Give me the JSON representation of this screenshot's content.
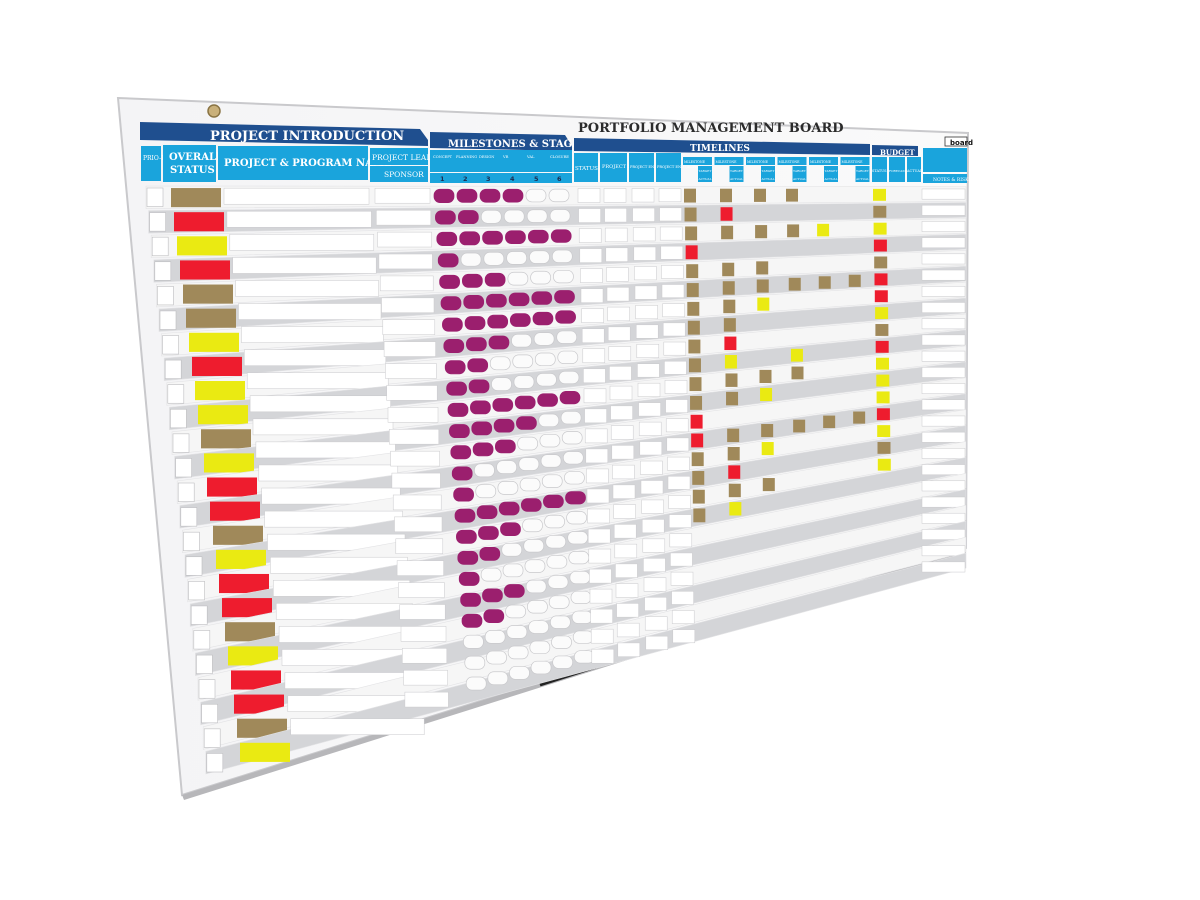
{
  "board": {
    "title": "PORTFOLIO MANAGEMENT BOARD",
    "logo_text": "board",
    "sections": {
      "project_introduction": "PROJECT INTRODUCTION",
      "milestones_stages": "MILESTONES & STAGES",
      "timelines": "TIMELINES",
      "budget": "BUDGET"
    },
    "columns": {
      "priority": "PRIO-RITY",
      "overall_status_1": "OVERALL",
      "overall_status_2": "STATUS",
      "project_name": "PROJECT & PROGRAM NAME",
      "project_lead": "PROJECT LEAD",
      "sponsor": "SPONSOR",
      "stage_labels": [
        "CONCEPT",
        "PLANNING",
        "DESIGN",
        "VR",
        "VAL",
        "CLOSURE"
      ],
      "stage_numbers": [
        "1",
        "2",
        "3",
        "4",
        "5",
        "6"
      ],
      "timeline_status": "STATUS",
      "project_start": "PROJECT START",
      "project_end_target": "PROJECT END (TARGET)",
      "project_end_actual": "PROJECT END (ACTUAL)",
      "milestone": "MILESTONE",
      "target": "TARGET",
      "actual": "ACTUAL",
      "budget_status": "STATUS",
      "forecast": "FORECAST",
      "budget_actual": "ACTUAL",
      "notes_risks": "NOTES & RISKS"
    },
    "colors": {
      "header_blue": "#1aa4dc",
      "banner_navy": "#1f4f8f",
      "status_brown": "#a0895a",
      "status_red": "#ee1c2e",
      "status_yellow": "#eaea12",
      "milestone_purple": "#9b1f6e",
      "row_gray": "#d4d5d8",
      "row_white": "#f6f6f6"
    },
    "rows": [
      {
        "status": "brown",
        "milestones": 4,
        "timeline": [
          "brown",
          null,
          "brown",
          "brown",
          "brown",
          null,
          null,
          null
        ],
        "budget": "yellow"
      },
      {
        "status": "red",
        "milestones": 2,
        "timeline": [
          "brown",
          null,
          "red",
          null,
          null,
          null,
          null,
          null
        ],
        "budget": "brown"
      },
      {
        "status": "yellow",
        "milestones": 6,
        "timeline": [
          "brown",
          null,
          "brown",
          "brown",
          "brown",
          "yellow",
          null,
          null
        ],
        "budget": "yellow"
      },
      {
        "status": "red",
        "milestones": 1,
        "timeline": [
          "red",
          null,
          null,
          null,
          null,
          null,
          null,
          null
        ],
        "budget": "red"
      },
      {
        "status": "brown",
        "milestones": 3,
        "timeline": [
          "brown",
          null,
          "brown",
          "brown",
          null,
          null,
          null,
          null
        ],
        "budget": "brown"
      },
      {
        "status": "brown",
        "milestones": 6,
        "timeline": [
          "brown",
          null,
          "brown",
          "brown",
          "brown",
          "brown",
          "brown",
          null
        ],
        "budget": "red"
      },
      {
        "status": "yellow",
        "milestones": 6,
        "timeline": [
          "brown",
          null,
          "brown",
          "yellow",
          null,
          null,
          null,
          null
        ],
        "budget": "red"
      },
      {
        "status": "red",
        "milestones": 3,
        "timeline": [
          "brown",
          null,
          "brown",
          null,
          null,
          null,
          null,
          null
        ],
        "budget": "yellow"
      },
      {
        "status": "yellow",
        "milestones": 2,
        "timeline": [
          "brown",
          null,
          "red",
          null,
          null,
          null,
          null,
          null
        ],
        "budget": "brown"
      },
      {
        "status": "yellow",
        "milestones": 2,
        "timeline": [
          "brown",
          null,
          "yellow",
          null,
          "yellow",
          null,
          null,
          null
        ],
        "budget": "red"
      },
      {
        "status": "brown",
        "milestones": 6,
        "timeline": [
          "brown",
          null,
          "brown",
          "brown",
          "brown",
          null,
          null,
          null
        ],
        "budget": "yellow"
      },
      {
        "status": "yellow",
        "milestones": 4,
        "timeline": [
          "brown",
          null,
          "brown",
          "yellow",
          null,
          null,
          null,
          null
        ],
        "budget": "yellow"
      },
      {
        "status": "red",
        "milestones": 3,
        "timeline": [
          "red",
          null,
          null,
          null,
          null,
          null,
          null,
          null
        ],
        "budget": "yellow"
      },
      {
        "status": "red",
        "milestones": 1,
        "timeline": [
          "red",
          null,
          "brown",
          "brown",
          "brown",
          "brown",
          "brown",
          null
        ],
        "budget": "red"
      },
      {
        "status": "brown",
        "milestones": 1,
        "timeline": [
          "brown",
          null,
          "brown",
          "yellow",
          null,
          null,
          null,
          null
        ],
        "budget": "yellow"
      },
      {
        "status": "yellow",
        "milestones": 6,
        "timeline": [
          "brown",
          null,
          "red",
          null,
          null,
          null,
          null,
          null
        ],
        "budget": "brown"
      },
      {
        "status": "red",
        "milestones": 3,
        "timeline": [
          "brown",
          null,
          "brown",
          "brown",
          null,
          null,
          null,
          null
        ],
        "budget": "yellow"
      },
      {
        "status": "red",
        "milestones": 2,
        "timeline": [
          "brown",
          null,
          "yellow",
          null,
          null,
          null,
          null,
          null
        ],
        "budget": null
      },
      {
        "status": "brown",
        "milestones": 1,
        "timeline": [
          null,
          null,
          null,
          null,
          null,
          null,
          null,
          null
        ],
        "budget": null
      },
      {
        "status": "yellow",
        "milestones": 3,
        "timeline": [
          null,
          null,
          null,
          null,
          null,
          null,
          null,
          null
        ],
        "budget": null
      },
      {
        "status": "red",
        "milestones": 2,
        "timeline": [
          null,
          null,
          null,
          null,
          null,
          null,
          null,
          null
        ],
        "budget": null
      },
      {
        "status": "red",
        "milestones": 0,
        "timeline": [
          null,
          null,
          null,
          null,
          null,
          null,
          null,
          null
        ],
        "budget": null
      },
      {
        "status": "brown",
        "milestones": 0,
        "timeline": [
          null,
          null,
          null,
          null,
          null,
          null,
          null,
          null
        ],
        "budget": null
      },
      {
        "status": "yellow",
        "milestones": 0,
        "timeline": [
          null,
          null,
          null,
          null,
          null,
          null,
          null,
          null
        ],
        "budget": null
      }
    ]
  }
}
